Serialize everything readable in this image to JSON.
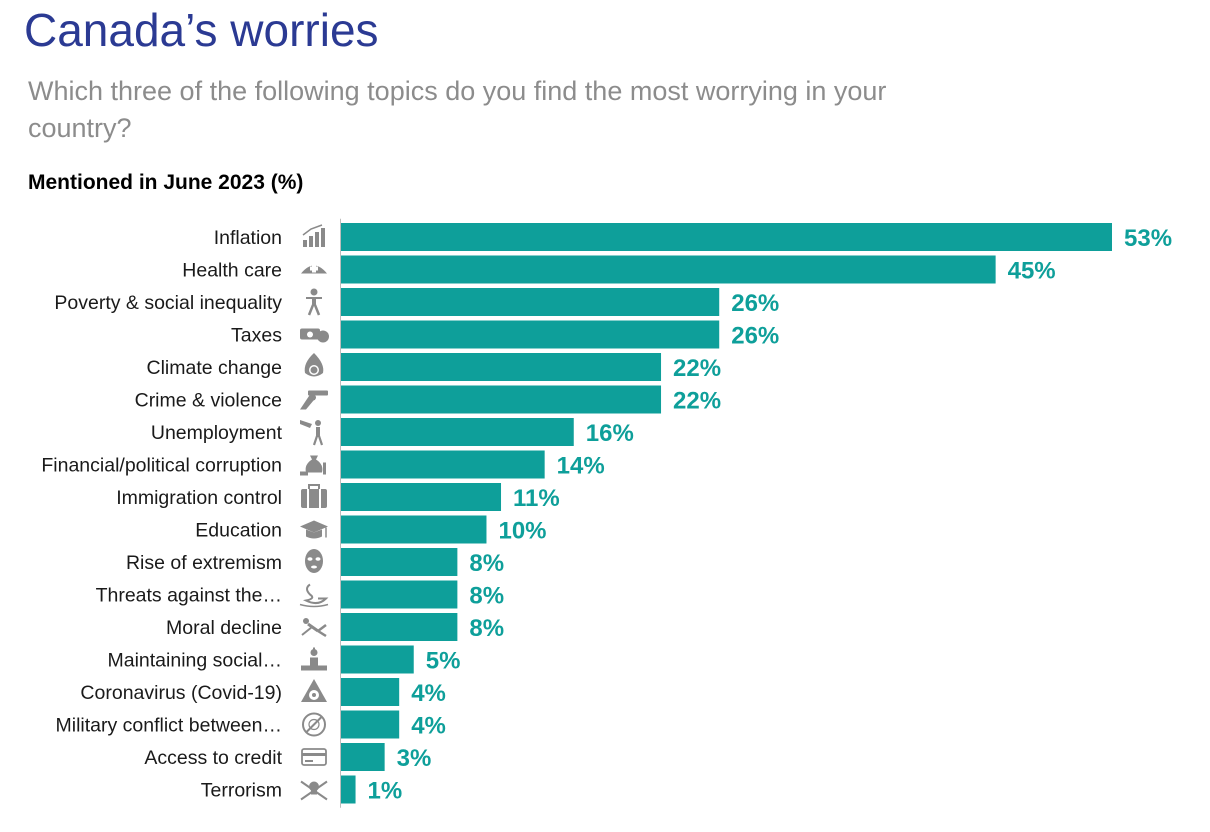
{
  "title": "Canada’s worries",
  "subtitle": "Which three of the following topics do you find the most worrying in your country?",
  "section_label": "Mentioned in June 2023 (%)",
  "colors": {
    "title": "#2b3a93",
    "bar": "#0e9f9a",
    "value_label": "#0e9f9a",
    "icon": "#8a8a8a"
  },
  "chart_data": {
    "type": "bar",
    "orientation": "horizontal",
    "title": "Mentioned in June 2023 (%)",
    "value_suffix": "%",
    "xlim": [
      0,
      53
    ],
    "categories": [
      "Inflation",
      "Health care",
      "Poverty & social inequality",
      "Taxes",
      "Climate change",
      "Crime & violence",
      "Unemployment",
      "Financial/political corruption",
      "Immigration control",
      "Education",
      "Rise of extremism",
      "Threats against the…",
      "Moral decline",
      "Maintaining social…",
      "Coronavirus (Covid-19)",
      "Military conflict between…",
      "Access to credit",
      "Terrorism"
    ],
    "icons": [
      "chart-up-icon",
      "nurse-cap-icon",
      "person-icon",
      "money-icon",
      "burning-globe-icon",
      "gun-icon",
      "unemployed-person-icon",
      "money-bag-icon",
      "suitcase-icon",
      "graduation-cap-icon",
      "masked-face-icon",
      "swan-icon",
      "fallen-figure-icon",
      "podium-icon",
      "biohazard-icon",
      "no-weapons-icon",
      "credit-card-icon",
      "skull-crossbones-icon"
    ],
    "values": [
      53,
      45,
      26,
      26,
      22,
      22,
      16,
      14,
      11,
      10,
      8,
      8,
      8,
      5,
      4,
      4,
      3,
      1
    ],
    "display_values": [
      53,
      45,
      26,
      26,
      22,
      22,
      16,
      14,
      11,
      10,
      8,
      8,
      8,
      5,
      4,
      4,
      3,
      1
    ]
  }
}
